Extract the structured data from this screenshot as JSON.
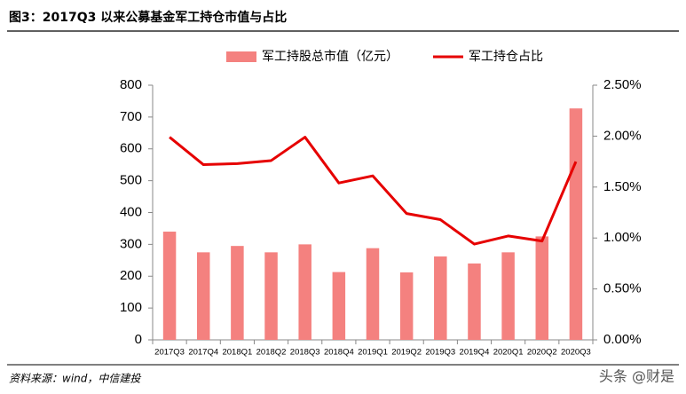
{
  "title": "图3：2017Q3 以来公募基金军工持仓市值与占比",
  "source": "资料来源：wind，中信建投",
  "watermark": "头条 @财是",
  "chart_data": {
    "type": "bar-line",
    "categories": [
      "2017Q3",
      "2017Q4",
      "2018Q1",
      "2018Q2",
      "2018Q3",
      "2018Q4",
      "2019Q1",
      "2019Q2",
      "2019Q3",
      "2019Q4",
      "2020Q1",
      "2020Q2",
      "2020Q3"
    ],
    "series": [
      {
        "name": "军工持股总市值（亿元）",
        "type": "bar",
        "color": "#f4817f",
        "values": [
          340,
          275,
          295,
          275,
          300,
          213,
          288,
          212,
          262,
          240,
          275,
          325,
          727
        ]
      },
      {
        "name": "军工持仓占比",
        "type": "line",
        "axis": "y2",
        "color": "#e60000",
        "values": [
          1.99,
          1.72,
          1.73,
          1.76,
          1.99,
          1.54,
          1.61,
          1.24,
          1.18,
          0.94,
          1.02,
          0.97,
          1.75
        ]
      }
    ],
    "ylim": [
      0,
      800
    ],
    "yticks": [
      0,
      100,
      200,
      300,
      400,
      500,
      600,
      700,
      800
    ],
    "y2lim": [
      0,
      2.5
    ],
    "y2ticks": [
      {
        "value": 0,
        "label": "0.00%"
      },
      {
        "value": 0.5,
        "label": "0.50%"
      },
      {
        "value": 1,
        "label": "1.00%"
      },
      {
        "value": 1.5,
        "label": "1.50%"
      },
      {
        "value": 2,
        "label": "2.00%"
      },
      {
        "value": 2.5,
        "label": "2.50%"
      }
    ],
    "legend": "top"
  }
}
